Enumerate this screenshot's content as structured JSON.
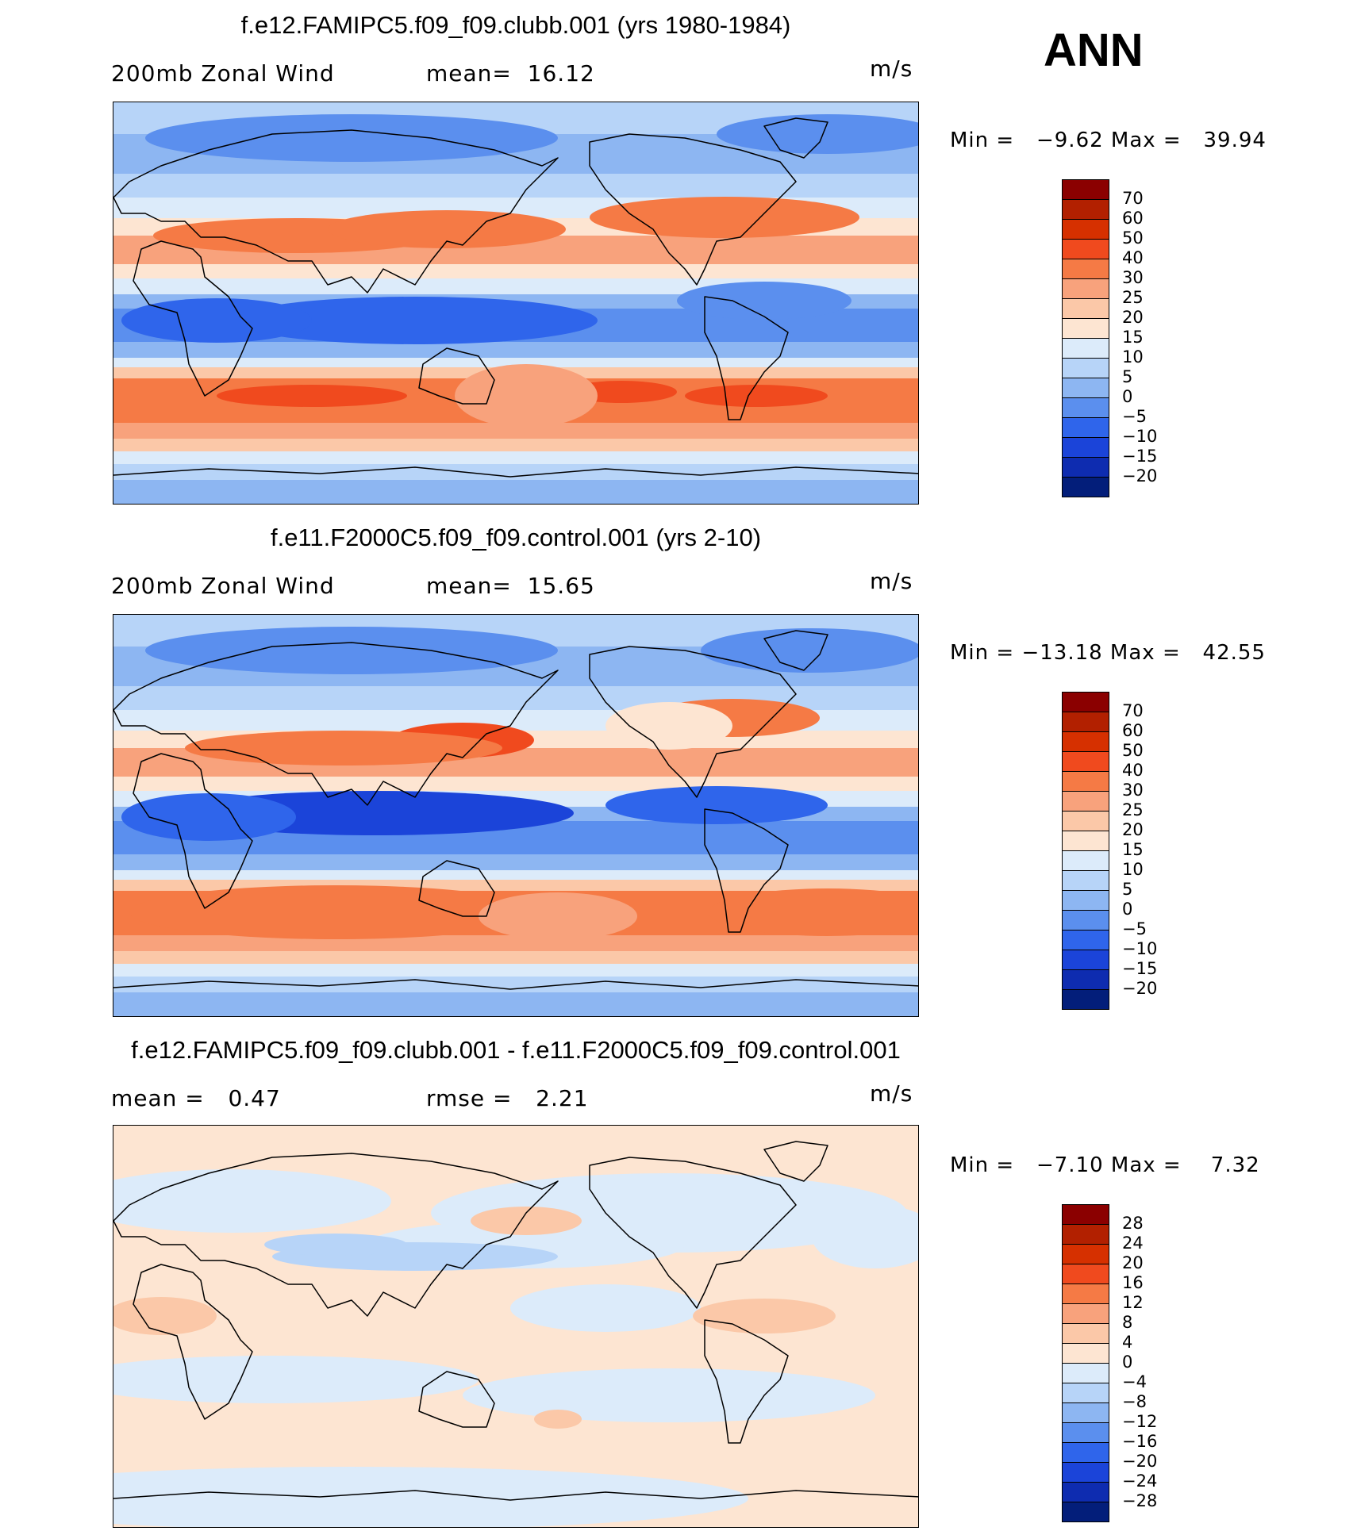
{
  "season": "ANN",
  "panels": [
    {
      "title": "f.e12.FAMIPC5.f09_f09.clubb.001 (yrs 1980-1984)",
      "left_label": "200mb Zonal Wind",
      "mid_label": "mean=  16.12",
      "units": "m/s",
      "minmax": "Min =   −9.62 Max =   39.94",
      "levels": [
        "70",
        "60",
        "50",
        "40",
        "30",
        "25",
        "20",
        "15",
        "10",
        "5",
        "0",
        "−5",
        "−10",
        "−15",
        "−20"
      ],
      "colors": [
        "#8b0000",
        "#b22000",
        "#d63000",
        "#f04a1e",
        "#f57a45",
        "#f8a27c",
        "#fbc8a8",
        "#fde5d2",
        "#dcebfa",
        "#b7d4f8",
        "#8db6f2",
        "#5b8fee",
        "#2f65eb",
        "#1b44d9",
        "#0e2cb0",
        "#031e7a"
      ]
    },
    {
      "title": "f.e11.F2000C5.f09_f09.control.001 (yrs 2-10)",
      "left_label": "200mb Zonal Wind",
      "mid_label": "mean=  15.65",
      "units": "m/s",
      "minmax": "Min = −13.18 Max =   42.55",
      "levels": [
        "70",
        "60",
        "50",
        "40",
        "30",
        "25",
        "20",
        "15",
        "10",
        "5",
        "0",
        "−5",
        "−10",
        "−15",
        "−20"
      ],
      "colors": [
        "#8b0000",
        "#b22000",
        "#d63000",
        "#f04a1e",
        "#f57a45",
        "#f8a27c",
        "#fbc8a8",
        "#fde5d2",
        "#dcebfa",
        "#b7d4f8",
        "#8db6f2",
        "#5b8fee",
        "#2f65eb",
        "#1b44d9",
        "#0e2cb0",
        "#031e7a"
      ]
    },
    {
      "title": "f.e12.FAMIPC5.f09_f09.clubb.001 - f.e11.F2000C5.f09_f09.control.001",
      "left_label": "mean =   0.47",
      "mid_label": "rmse =   2.21",
      "units": "m/s",
      "minmax": "Min =   −7.10 Max =    7.32",
      "levels": [
        "28",
        "24",
        "20",
        "16",
        "12",
        "8",
        "4",
        "0",
        "−4",
        "−8",
        "−12",
        "−16",
        "−20",
        "−24",
        "−28"
      ],
      "colors": [
        "#8b0000",
        "#b22000",
        "#d63000",
        "#f04a1e",
        "#f57a45",
        "#f8a27c",
        "#fbc8a8",
        "#fde5d2",
        "#dcebfa",
        "#b7d4f8",
        "#8db6f2",
        "#5b8fee",
        "#2f65eb",
        "#1b44d9",
        "#0e2cb0",
        "#031e7a"
      ]
    }
  ]
}
